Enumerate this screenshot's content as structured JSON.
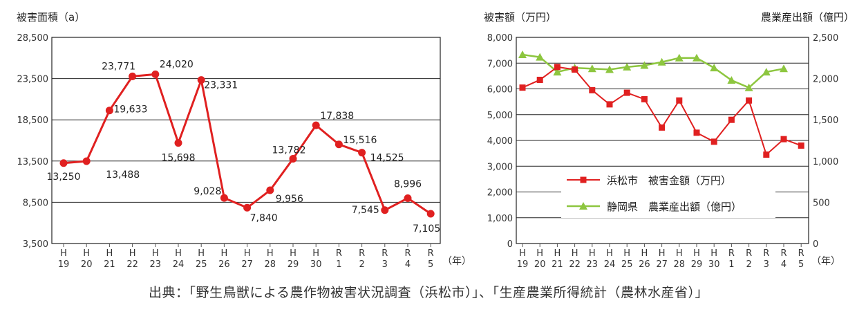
{
  "source_note": "出典：「野生鳥獣による農作物被害状況調査（浜松市）」、「生産農業所得統計（農林水産省）」",
  "colors": {
    "red": "#e02020",
    "green": "#8dc63f",
    "grid": "#222222",
    "axis": "#555555"
  },
  "chart_data": [
    {
      "type": "line",
      "title": "",
      "ylabel": "被害面積（a）",
      "xlabel": "（年）",
      "ylim": [
        3500,
        28500
      ],
      "yticks": [
        3500,
        8500,
        13500,
        18500,
        23500,
        28500
      ],
      "ytick_labels": [
        "3,500",
        "8,500",
        "13,500",
        "18,500",
        "23,500",
        "28,500"
      ],
      "categories": [
        {
          "top": "H",
          "bottom": "19"
        },
        {
          "top": "H",
          "bottom": "20"
        },
        {
          "top": "H",
          "bottom": "21"
        },
        {
          "top": "H",
          "bottom": "22"
        },
        {
          "top": "H",
          "bottom": "23"
        },
        {
          "top": "H",
          "bottom": "24"
        },
        {
          "top": "H",
          "bottom": "25"
        },
        {
          "top": "H",
          "bottom": "26"
        },
        {
          "top": "H",
          "bottom": "27"
        },
        {
          "top": "H",
          "bottom": "28"
        },
        {
          "top": "H",
          "bottom": "29"
        },
        {
          "top": "H",
          "bottom": "30"
        },
        {
          "top": "R",
          "bottom": "1"
        },
        {
          "top": "R",
          "bottom": "2"
        },
        {
          "top": "R",
          "bottom": "3"
        },
        {
          "top": "R",
          "bottom": "4"
        },
        {
          "top": "R",
          "bottom": "5"
        }
      ],
      "series": [
        {
          "name": "被害面積",
          "values": [
            13250,
            13488,
            19633,
            23771,
            24020,
            15698,
            23331,
            9028,
            7840,
            9956,
            13782,
            17838,
            15516,
            14525,
            7545,
            8996,
            7105
          ],
          "labels": [
            "13,250",
            "13,488",
            "19,633",
            "23,771",
            "24,020",
            "15,698",
            "23,331",
            "9,028",
            "7,840",
            "9,956",
            "13,782",
            "17,838",
            "15,516",
            "14,525",
            "7,545",
            "8,996",
            "7,105"
          ]
        }
      ]
    },
    {
      "type": "line",
      "title": "",
      "ylabel": "被害額（万円）",
      "y2label": "農業産出額（億円）",
      "xlabel": "（年）",
      "ylim": [
        0,
        8000
      ],
      "yticks": [
        0,
        1000,
        2000,
        3000,
        4000,
        5000,
        6000,
        7000,
        8000
      ],
      "ytick_labels": [
        "0",
        "1,000",
        "2,000",
        "3,000",
        "4,000",
        "5,000",
        "6,000",
        "7,000",
        "8,000"
      ],
      "y2lim": [
        0,
        2500
      ],
      "y2ticks": [
        0,
        500,
        1000,
        1500,
        2000,
        2500
      ],
      "y2tick_labels": [
        "0",
        "500",
        "1,000",
        "1,500",
        "2,000",
        "2,500"
      ],
      "categories": [
        {
          "top": "H",
          "bottom": "19"
        },
        {
          "top": "H",
          "bottom": "20"
        },
        {
          "top": "H",
          "bottom": "21"
        },
        {
          "top": "H",
          "bottom": "22"
        },
        {
          "top": "H",
          "bottom": "23"
        },
        {
          "top": "H",
          "bottom": "24"
        },
        {
          "top": "H",
          "bottom": "25"
        },
        {
          "top": "H",
          "bottom": "26"
        },
        {
          "top": "H",
          "bottom": "27"
        },
        {
          "top": "H",
          "bottom": "28"
        },
        {
          "top": "H",
          "bottom": "29"
        },
        {
          "top": "H",
          "bottom": "30"
        },
        {
          "top": "R",
          "bottom": "1"
        },
        {
          "top": "R",
          "bottom": "2"
        },
        {
          "top": "R",
          "bottom": "3"
        },
        {
          "top": "R",
          "bottom": "4"
        },
        {
          "top": "R",
          "bottom": "5"
        }
      ],
      "legend_position": "center",
      "series": [
        {
          "name": "浜松市　被害金額（万円）",
          "axis": "left",
          "marker": "square",
          "values": [
            6050,
            6350,
            6850,
            6750,
            5950,
            5400,
            5850,
            5600,
            4500,
            5550,
            4300,
            3950,
            4800,
            5550,
            3450,
            4050,
            3800
          ]
        },
        {
          "name": "静岡県　農業産出額（億円）",
          "axis": "right",
          "marker": "triangle",
          "values": [
            2290,
            2260,
            2080,
            2130,
            2120,
            2110,
            2140,
            2160,
            2200,
            2250,
            2250,
            2130,
            1980,
            1890,
            2080,
            2120,
            null
          ]
        }
      ]
    }
  ]
}
